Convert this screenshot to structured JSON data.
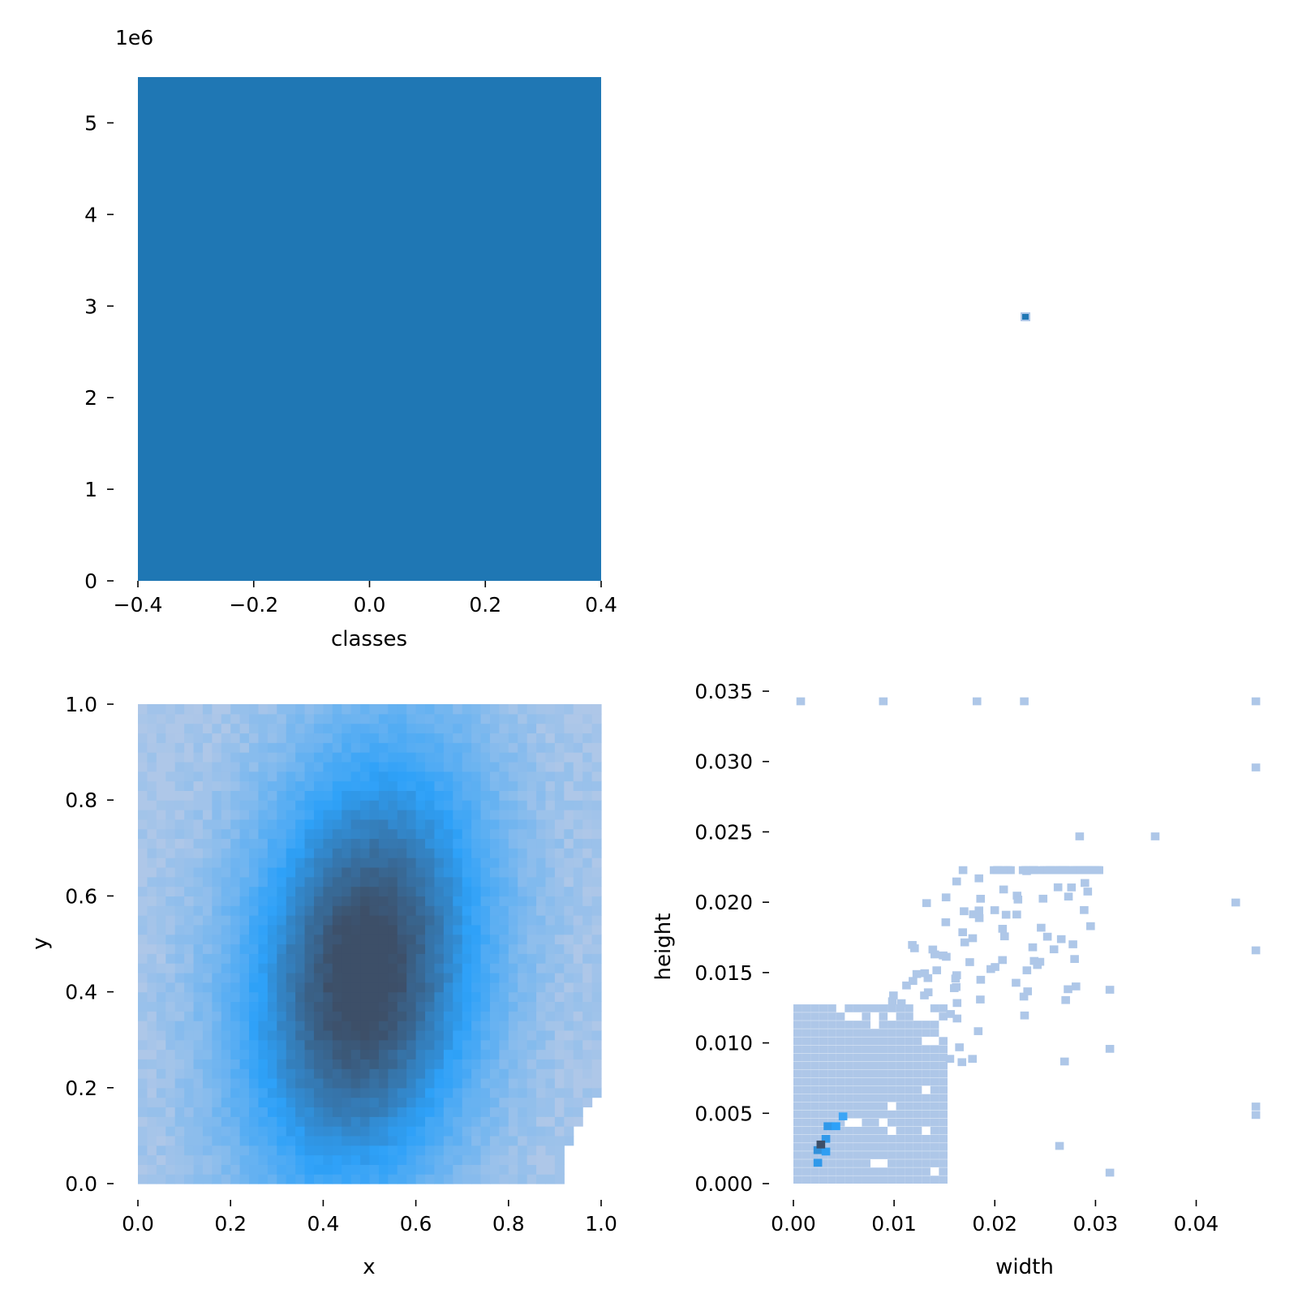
{
  "chart_data": [
    {
      "id": "classes-hist",
      "type": "bar",
      "xlabel": "classes",
      "ylabel": "",
      "offset_label": "1e6",
      "xlim": [
        -0.4,
        0.4
      ],
      "ylim": [
        0,
        5.5
      ],
      "xticks": [
        -0.4,
        -0.2,
        0.0,
        0.2,
        0.4
      ],
      "xtick_labels": [
        "−0.4",
        "−0.2",
        "0.0",
        "0.2",
        "0.4"
      ],
      "yticks": [
        0,
        1,
        2,
        3,
        4,
        5
      ],
      "ytick_labels": [
        "0",
        "1",
        "2",
        "3",
        "4",
        "5"
      ],
      "bars": [
        {
          "x0": -0.4,
          "x1": 0.4,
          "value": 5.5
        }
      ],
      "color": "#1f77b4",
      "grid": false
    },
    {
      "id": "classes-width-hist",
      "type": "heatmap",
      "note_visible": "single small cell",
      "cells": [
        {
          "i": 0,
          "j": 0,
          "level": 1
        }
      ],
      "color": "#1f77b4"
    },
    {
      "id": "xy-hist2d",
      "type": "heatmap",
      "xlabel": "x",
      "ylabel": "y",
      "xlim": [
        0,
        1
      ],
      "ylim": [
        0,
        1
      ],
      "xticks": [
        0.0,
        0.2,
        0.4,
        0.6,
        0.8,
        1.0
      ],
      "xtick_labels": [
        "0.0",
        "0.2",
        "0.4",
        "0.6",
        "0.8",
        "1.0"
      ],
      "yticks": [
        0.0,
        0.2,
        0.4,
        0.6,
        0.8,
        1.0
      ],
      "ytick_labels": [
        "0.0",
        "0.2",
        "0.4",
        "0.6",
        "0.8",
        "1.0"
      ],
      "bins": 50,
      "density_center": [
        0.49,
        0.44
      ],
      "density_spread": [
        0.17,
        0.3
      ],
      "colors": {
        "low": "#aec7e8",
        "mid": "#2ea1f8",
        "high": "#3d4f68"
      },
      "empty_region": "bottom-right corner",
      "grid": false
    },
    {
      "id": "wh-hist2d",
      "type": "heatmap",
      "xlabel": "width",
      "ylabel": "height",
      "xlim": [
        0,
        0.046
      ],
      "ylim": [
        0,
        0.035
      ],
      "xticks": [
        0.0,
        0.01,
        0.02,
        0.03,
        0.04
      ],
      "xtick_labels": [
        "0.00",
        "0.01",
        "0.02",
        "0.03",
        "0.04"
      ],
      "yticks": [
        0.0,
        0.005,
        0.01,
        0.015,
        0.02,
        0.025,
        0.03,
        0.035
      ],
      "ytick_labels": [
        "0.000",
        "0.005",
        "0.010",
        "0.015",
        "0.020",
        "0.025",
        "0.030",
        "0.035"
      ],
      "peak": [
        0.0023,
        0.0025
      ],
      "colors": {
        "low": "#aec7e8",
        "mid": "#2ea1f8",
        "high": "#3d4f68"
      },
      "grid": false
    }
  ]
}
